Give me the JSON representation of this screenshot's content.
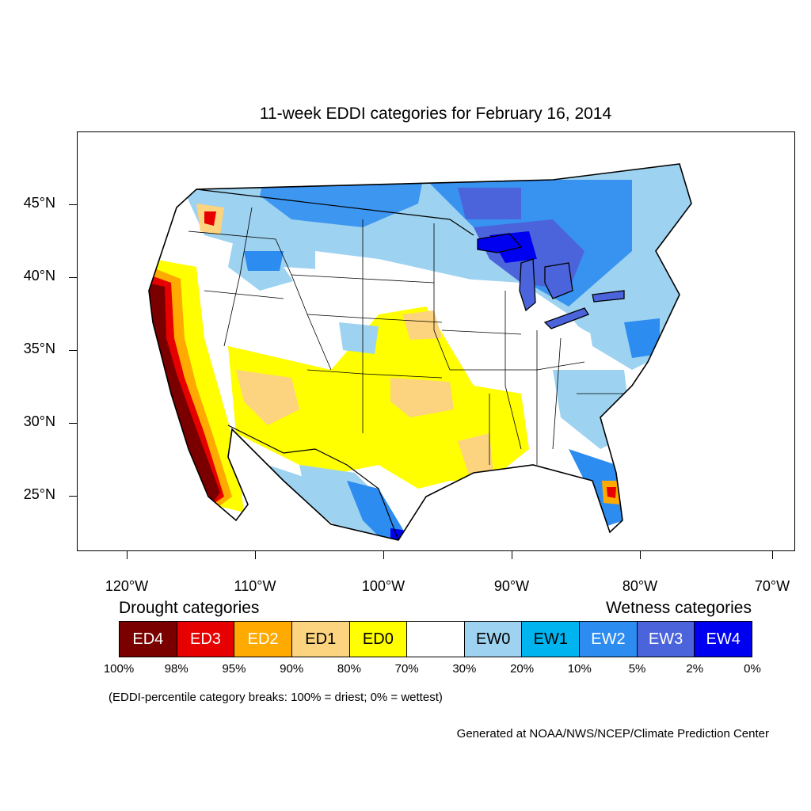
{
  "title": "11-week EDDI categories for February 16, 2014",
  "axes": {
    "lat_labels": [
      "45°N",
      "40°N",
      "35°N",
      "30°N",
      "25°N"
    ],
    "lon_labels": [
      "120°W",
      "110°W",
      "100°W",
      "90°W",
      "80°W",
      "70°W"
    ]
  },
  "legend": {
    "drought_heading": "Drought categories",
    "wetness_heading": "Wetness categories",
    "categories": [
      {
        "label": "ED4",
        "color": "#7a0000",
        "text_color": "#ffffff"
      },
      {
        "label": "ED3",
        "color": "#e60000",
        "text_color": "#ffffff"
      },
      {
        "label": "ED2",
        "color": "#ffaa00",
        "text_color": "#ffffff"
      },
      {
        "label": "ED1",
        "color": "#fcd37f",
        "text_color": "#000000"
      },
      {
        "label": "ED0",
        "color": "#ffff00",
        "text_color": "#000000"
      },
      {
        "label": "",
        "color": "#ffffff",
        "text_color": "#000000"
      },
      {
        "label": "EW0",
        "color": "#9dd2f0",
        "text_color": "#000000"
      },
      {
        "label": "EW1",
        "color": "#00b4f0",
        "text_color": "#000000"
      },
      {
        "label": "EW2",
        "color": "#2d8cf0",
        "text_color": "#ffffff"
      },
      {
        "label": "EW3",
        "color": "#4b64dc",
        "text_color": "#ffffff"
      },
      {
        "label": "EW4",
        "color": "#0000f0",
        "text_color": "#ffffff"
      }
    ],
    "breaks": [
      "100%",
      "98%",
      "95%",
      "90%",
      "80%",
      "70%",
      "30%",
      "20%",
      "10%",
      "5%",
      "2%",
      "0%"
    ],
    "note": "(EDDI-percentile category breaks: 100% = driest; 0% = wettest)"
  },
  "credit": "Generated at NOAA/NWS/NCEP/Climate Prediction Center"
}
